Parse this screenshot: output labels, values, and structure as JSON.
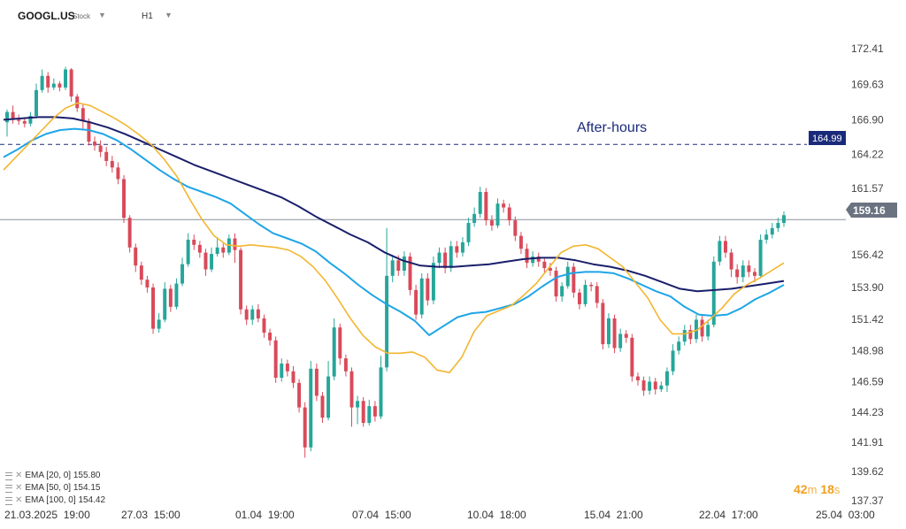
{
  "toolbar": {
    "symbol": "GOOGL.US",
    "type": "Stock",
    "timeframe": "H1",
    "symbol_dropdown_icon": "caret-down-icon",
    "timeframe_dropdown_icon": "caret-down-icon"
  },
  "colors": {
    "up": "#26a69a",
    "down": "#d94a5a",
    "ema20": "#f2b630",
    "ema50": "#1ea5e8",
    "ema100": "#1a1f6b",
    "after_hours": "#1a2a7a",
    "current_price_label": "#6b7280"
  },
  "price_labels": {
    "after_hours_text": "After-hours",
    "after_hours_price": "164.99",
    "current_price": "159.16"
  },
  "indicators": [
    {
      "name": "EMA [20, 0]",
      "value": "155.80"
    },
    {
      "name": "EMA [50, 0]",
      "value": "154.15"
    },
    {
      "name": "EMA [100, 0]",
      "value": "154.42"
    }
  ],
  "timer": {
    "minutes": "42",
    "m_unit": "m",
    "seconds": "18",
    "s_unit": "s"
  },
  "chart_data": {
    "type": "candlestick",
    "y_ticks": [
      "172.41",
      "169.63",
      "166.90",
      "164.22",
      "161.57",
      "159.16",
      "156.42",
      "153.90",
      "151.42",
      "148.98",
      "146.59",
      "144.23",
      "141.91",
      "139.62",
      "137.37"
    ],
    "x_ticks": [
      "21.03.2025  19:00",
      "27.03  15:00",
      "01.04  19:00",
      "07.04  15:00",
      "10.04  18:00",
      "15.04  21:00",
      "22.04  17:00",
      "25.04  03:00"
    ],
    "ylim": [
      137.37,
      172.41
    ],
    "after_hours_level": 164.99,
    "current_price": 159.16,
    "candles": [
      [
        166.7,
        167.5,
        167.7,
        165.6
      ],
      [
        167.5,
        166.9,
        168.0,
        166.6
      ],
      [
        166.9,
        166.8,
        167.3,
        166.5
      ],
      [
        166.8,
        166.6,
        167.1,
        166.3
      ],
      [
        166.6,
        167.2,
        167.5,
        166.4
      ],
      [
        167.2,
        169.2,
        169.7,
        167.0
      ],
      [
        169.2,
        170.3,
        170.8,
        169.0
      ],
      [
        170.3,
        169.4,
        170.6,
        169.0
      ],
      [
        169.4,
        169.7,
        170.1,
        169.2
      ],
      [
        169.7,
        169.4,
        169.9,
        169.1
      ],
      [
        169.4,
        170.8,
        171.0,
        169.2
      ],
      [
        170.8,
        168.7,
        170.9,
        168.3
      ],
      [
        168.7,
        167.8,
        168.9,
        167.5
      ],
      [
        167.8,
        166.8,
        168.1,
        166.2
      ],
      [
        166.8,
        165.2,
        167.0,
        164.9
      ],
      [
        165.2,
        164.9,
        165.6,
        164.5
      ],
      [
        164.9,
        164.4,
        165.3,
        164.0
      ],
      [
        164.4,
        163.7,
        164.8,
        163.3
      ],
      [
        163.7,
        163.2,
        164.1,
        162.8
      ],
      [
        163.2,
        162.3,
        163.6,
        161.9
      ],
      [
        162.3,
        159.3,
        162.6,
        158.9
      ],
      [
        159.3,
        157.0,
        159.5,
        156.6
      ],
      [
        157.0,
        155.6,
        157.3,
        155.1
      ],
      [
        155.6,
        154.5,
        155.9,
        154.1
      ],
      [
        154.5,
        153.9,
        154.8,
        153.5
      ],
      [
        153.9,
        150.7,
        154.2,
        150.3
      ],
      [
        150.7,
        151.4,
        151.9,
        150.4
      ],
      [
        151.4,
        153.8,
        154.3,
        151.2
      ],
      [
        153.8,
        152.4,
        154.1,
        152.0
      ],
      [
        152.4,
        154.2,
        154.6,
        152.2
      ],
      [
        154.2,
        155.7,
        156.2,
        154.0
      ],
      [
        155.7,
        157.6,
        158.1,
        155.5
      ],
      [
        157.6,
        157.2,
        158.0,
        156.8
      ],
      [
        157.2,
        156.6,
        157.5,
        156.2
      ],
      [
        156.6,
        155.3,
        156.9,
        154.8
      ],
      [
        155.3,
        156.5,
        157.0,
        155.1
      ],
      [
        156.5,
        157.0,
        157.8,
        156.3
      ],
      [
        157.0,
        156.6,
        157.3,
        156.2
      ],
      [
        156.6,
        157.7,
        158.0,
        156.4
      ],
      [
        157.7,
        156.8,
        158.1,
        155.8
      ],
      [
        156.8,
        152.2,
        157.0,
        151.8
      ],
      [
        152.2,
        151.4,
        152.5,
        151.0
      ],
      [
        151.4,
        152.2,
        152.5,
        151.0
      ],
      [
        152.2,
        151.5,
        152.6,
        151.2
      ],
      [
        151.5,
        150.4,
        151.8,
        150.0
      ],
      [
        150.4,
        149.8,
        150.7,
        149.4
      ],
      [
        149.8,
        146.9,
        150.1,
        146.5
      ],
      [
        146.9,
        148.0,
        148.4,
        146.6
      ],
      [
        148.0,
        147.4,
        148.3,
        147.0
      ],
      [
        147.4,
        146.5,
        147.8,
        146.1
      ],
      [
        146.5,
        144.6,
        146.8,
        144.2
      ],
      [
        144.6,
        141.5,
        145.0,
        140.7
      ],
      [
        141.5,
        147.6,
        148.2,
        141.2
      ],
      [
        147.6,
        145.5,
        148.0,
        145.1
      ],
      [
        145.5,
        143.8,
        145.8,
        143.4
      ],
      [
        143.8,
        147.0,
        148.2,
        143.6
      ],
      [
        147.0,
        150.8,
        151.5,
        146.7
      ],
      [
        150.8,
        148.4,
        151.1,
        147.9
      ],
      [
        148.4,
        147.4,
        148.7,
        147.0
      ],
      [
        147.4,
        144.6,
        147.7,
        143.1
      ],
      [
        144.6,
        145.1,
        145.5,
        143.3
      ],
      [
        145.1,
        143.4,
        145.4,
        143.1
      ],
      [
        143.4,
        144.7,
        145.2,
        143.2
      ],
      [
        144.7,
        143.9,
        145.1,
        143.5
      ],
      [
        143.9,
        147.7,
        148.6,
        143.7
      ],
      [
        147.7,
        154.8,
        158.5,
        147.4
      ],
      [
        154.8,
        156.0,
        156.4,
        154.3
      ],
      [
        156.0,
        155.2,
        156.4,
        154.8
      ],
      [
        155.2,
        156.3,
        156.7,
        154.8
      ],
      [
        156.3,
        153.7,
        156.6,
        153.3
      ],
      [
        153.7,
        151.8,
        154.1,
        151.4
      ],
      [
        151.8,
        154.6,
        155.0,
        151.5
      ],
      [
        154.6,
        152.9,
        155.0,
        152.5
      ],
      [
        152.9,
        155.8,
        156.3,
        152.6
      ],
      [
        155.8,
        156.6,
        157.0,
        155.4
      ],
      [
        156.6,
        155.4,
        157.0,
        155.0
      ],
      [
        155.4,
        157.1,
        157.5,
        155.1
      ],
      [
        157.1,
        156.6,
        157.5,
        156.2
      ],
      [
        156.6,
        157.4,
        157.8,
        156.3
      ],
      [
        157.4,
        158.9,
        159.3,
        157.1
      ],
      [
        158.9,
        159.6,
        160.1,
        158.6
      ],
      [
        159.6,
        161.3,
        161.7,
        159.3
      ],
      [
        161.3,
        159.1,
        161.6,
        158.7
      ],
      [
        159.1,
        158.7,
        159.5,
        158.3
      ],
      [
        158.7,
        160.4,
        160.8,
        158.5
      ],
      [
        160.4,
        160.1,
        160.7,
        159.7
      ],
      [
        160.1,
        159.1,
        160.4,
        158.7
      ],
      [
        159.1,
        157.9,
        159.4,
        157.5
      ],
      [
        157.9,
        156.9,
        158.2,
        156.5
      ],
      [
        156.9,
        155.8,
        157.3,
        155.4
      ],
      [
        155.8,
        156.3,
        156.7,
        155.5
      ],
      [
        156.3,
        155.9,
        156.6,
        155.5
      ],
      [
        155.9,
        155.4,
        156.2,
        155.0
      ],
      [
        155.4,
        155.2,
        155.8,
        154.8
      ],
      [
        155.2,
        153.2,
        155.5,
        152.8
      ],
      [
        153.2,
        154.0,
        154.3,
        152.8
      ],
      [
        154.0,
        155.5,
        155.9,
        153.8
      ],
      [
        155.5,
        153.5,
        155.8,
        153.1
      ],
      [
        153.5,
        152.6,
        153.8,
        152.2
      ],
      [
        152.6,
        154.1,
        154.5,
        152.4
      ],
      [
        154.1,
        154.0,
        154.3,
        153.6
      ],
      [
        154.0,
        152.7,
        154.3,
        152.3
      ],
      [
        152.7,
        149.5,
        153.0,
        149.1
      ],
      [
        149.5,
        151.5,
        151.9,
        149.2
      ],
      [
        151.5,
        149.2,
        151.8,
        148.8
      ],
      [
        149.2,
        150.3,
        150.7,
        148.9
      ],
      [
        150.3,
        150.0,
        150.6,
        149.6
      ],
      [
        150.0,
        147.0,
        150.3,
        146.6
      ],
      [
        147.0,
        146.7,
        147.3,
        146.3
      ],
      [
        146.7,
        145.9,
        147.0,
        145.5
      ],
      [
        145.9,
        146.6,
        147.0,
        145.6
      ],
      [
        146.6,
        146.0,
        146.9,
        145.6
      ],
      [
        146.0,
        146.3,
        146.6,
        145.8
      ],
      [
        146.3,
        147.4,
        147.7,
        145.8
      ],
      [
        147.4,
        149.0,
        149.5,
        147.1
      ],
      [
        149.0,
        149.7,
        150.1,
        148.7
      ],
      [
        149.7,
        150.6,
        151.0,
        149.4
      ],
      [
        150.6,
        149.9,
        151.0,
        149.5
      ],
      [
        149.9,
        151.4,
        151.8,
        149.6
      ],
      [
        151.4,
        150.1,
        151.8,
        149.7
      ],
      [
        150.1,
        151.0,
        151.4,
        149.8
      ],
      [
        151.0,
        155.9,
        156.3,
        150.8
      ],
      [
        155.9,
        157.5,
        157.9,
        155.6
      ],
      [
        157.5,
        156.6,
        157.9,
        156.2
      ],
      [
        156.6,
        155.3,
        156.9,
        154.7
      ],
      [
        155.3,
        154.7,
        155.7,
        154.2
      ],
      [
        154.7,
        155.6,
        156.0,
        154.3
      ],
      [
        155.6,
        155.1,
        156.0,
        154.7
      ],
      [
        155.1,
        154.8,
        155.4,
        154.3
      ],
      [
        154.8,
        157.6,
        158.0,
        154.6
      ],
      [
        157.6,
        158.0,
        158.4,
        157.3
      ],
      [
        158.0,
        158.5,
        158.9,
        157.7
      ],
      [
        158.5,
        158.9,
        159.3,
        158.2
      ],
      [
        158.9,
        159.5,
        159.8,
        158.6
      ]
    ],
    "ema20": [
      163.0,
      164.0,
      165.0,
      166.0,
      167.0,
      167.8,
      168.2,
      168.0,
      167.5,
      167.0,
      166.4,
      165.7,
      164.9,
      163.8,
      162.5,
      160.8,
      159.2,
      157.9,
      157.2,
      157.1,
      157.2,
      157.1,
      157.0,
      156.8,
      156.3,
      155.5,
      154.4,
      153.0,
      151.5,
      150.2,
      149.3,
      148.8,
      148.8,
      148.9,
      148.5,
      147.5,
      147.3,
      148.5,
      150.5,
      151.7,
      152.1,
      152.5,
      153.3,
      154.2,
      155.4,
      156.6,
      157.1,
      157.2,
      156.9,
      156.2,
      155.5,
      154.3,
      153.1,
      151.4,
      150.3,
      150.3,
      150.6,
      151.4,
      152.3,
      153.4,
      154.1,
      154.6,
      155.2,
      155.8
    ],
    "ema50": [
      164.0,
      164.6,
      165.3,
      165.8,
      166.1,
      166.2,
      166.1,
      165.8,
      165.3,
      164.6,
      163.8,
      163.0,
      162.3,
      161.7,
      161.3,
      160.9,
      160.4,
      159.6,
      158.8,
      158.1,
      157.7,
      157.3,
      156.7,
      155.8,
      155.0,
      154.1,
      153.3,
      152.6,
      152.0,
      151.3,
      150.2,
      150.9,
      151.6,
      151.9,
      152.0,
      152.3,
      152.6,
      153.2,
      154.0,
      154.7,
      155.0,
      155.1,
      155.1,
      155.0,
      154.6,
      154.1,
      153.6,
      153.2,
      152.4,
      151.8,
      151.7,
      151.8,
      152.3,
      153.0,
      153.5,
      154.1
    ],
    "ema100": [
      166.9,
      167.0,
      167.1,
      167.1,
      167.0,
      166.7,
      166.3,
      165.8,
      165.2,
      164.6,
      164.0,
      163.4,
      162.9,
      162.4,
      161.9,
      161.4,
      160.9,
      160.2,
      159.4,
      158.7,
      158.0,
      157.4,
      156.6,
      156.0,
      155.6,
      155.5,
      155.5,
      155.6,
      155.7,
      155.9,
      156.1,
      156.2,
      156.2,
      156.0,
      155.7,
      155.5,
      155.2,
      154.8,
      154.3,
      153.8,
      153.6,
      153.7,
      153.8,
      154.0,
      154.2,
      154.4
    ]
  }
}
